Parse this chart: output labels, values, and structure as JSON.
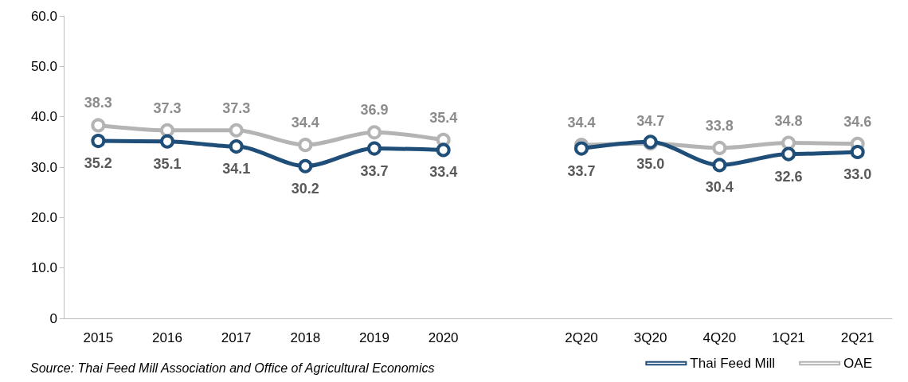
{
  "chart_data": {
    "type": "line",
    "categories": [
      "2015",
      "2016",
      "2017",
      "2018",
      "2019",
      "2020",
      null,
      "2Q20",
      "3Q20",
      "4Q20",
      "1Q21",
      "2Q21"
    ],
    "series": [
      {
        "name": "Thai Feed Mill",
        "color": "#1f4e79",
        "values": [
          35.2,
          35.1,
          34.1,
          30.2,
          33.7,
          33.4,
          null,
          33.7,
          35.0,
          30.4,
          32.6,
          33.0
        ],
        "value_labels": [
          "35.2",
          "35.1",
          "34.1",
          "30.2",
          "33.7",
          "33.4",
          null,
          "33.7",
          "35.0",
          "30.4",
          "32.6",
          "33.0"
        ]
      },
      {
        "name": "OAE",
        "color": "#b4b4b4",
        "values": [
          38.3,
          37.3,
          37.3,
          34.4,
          36.9,
          35.4,
          null,
          34.4,
          34.7,
          33.8,
          34.8,
          34.6
        ],
        "value_labels": [
          "38.3",
          "37.3",
          "37.3",
          "34.4",
          "36.9",
          "35.4",
          null,
          "34.4",
          "34.7",
          "33.8",
          "34.8",
          "34.6"
        ]
      }
    ],
    "ylim": [
      0,
      60
    ],
    "yticks": [
      {
        "value": 0,
        "label": "0"
      },
      {
        "value": 10,
        "label": "10.0"
      },
      {
        "value": 20,
        "label": "20.0"
      },
      {
        "value": 30,
        "label": "30.0"
      },
      {
        "value": 40,
        "label": "40.0"
      },
      {
        "value": 50,
        "label": "50.0"
      },
      {
        "value": 60,
        "label": "60.0"
      }
    ],
    "grid": false,
    "legend": "bottom right",
    "marker": "circle",
    "line_style": "solid",
    "annotations": [
      "Source: Thai Feed Mill Association and Office of Agricultural Economics"
    ]
  }
}
